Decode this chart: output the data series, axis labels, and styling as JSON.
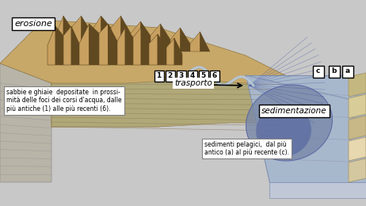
{
  "figsize": [
    4.62,
    2.6
  ],
  "dpi": 100,
  "bg_color": "#c8c8c8",
  "land_top_color": "#c8a868",
  "land_shadow_color": "#a08848",
  "left_face_color": "#b8b4a8",
  "left_face_line": "#909090",
  "mountain_light": "#c8a060",
  "mountain_mid": "#a07840",
  "mountain_dark": "#604820",
  "sea_surface_color": "#a8b8cc",
  "sea_surface_color2": "#8090b0",
  "sea_deep_color": "#8898b8",
  "marine_face_color": "#c0c8d8",
  "marine_right_color": "#b0b8c8",
  "marine_bottom_color": "#b8c0d0",
  "stratum_a": "#d4c8a0",
  "stratum_b": "#e8d8b0",
  "stratum_c": "#c8b888",
  "delta_outer": "#7888a8",
  "delta_inner": "#5868a0",
  "delta_line": "#4858a0",
  "river_color": "#aabbcc",
  "arrow_color": "#202020",
  "label_bg": "#f0f0f0",
  "num_labels": [
    "1",
    "2",
    "3",
    "4",
    "5",
    "6"
  ],
  "let_labels": [
    "c",
    "b",
    "a"
  ]
}
